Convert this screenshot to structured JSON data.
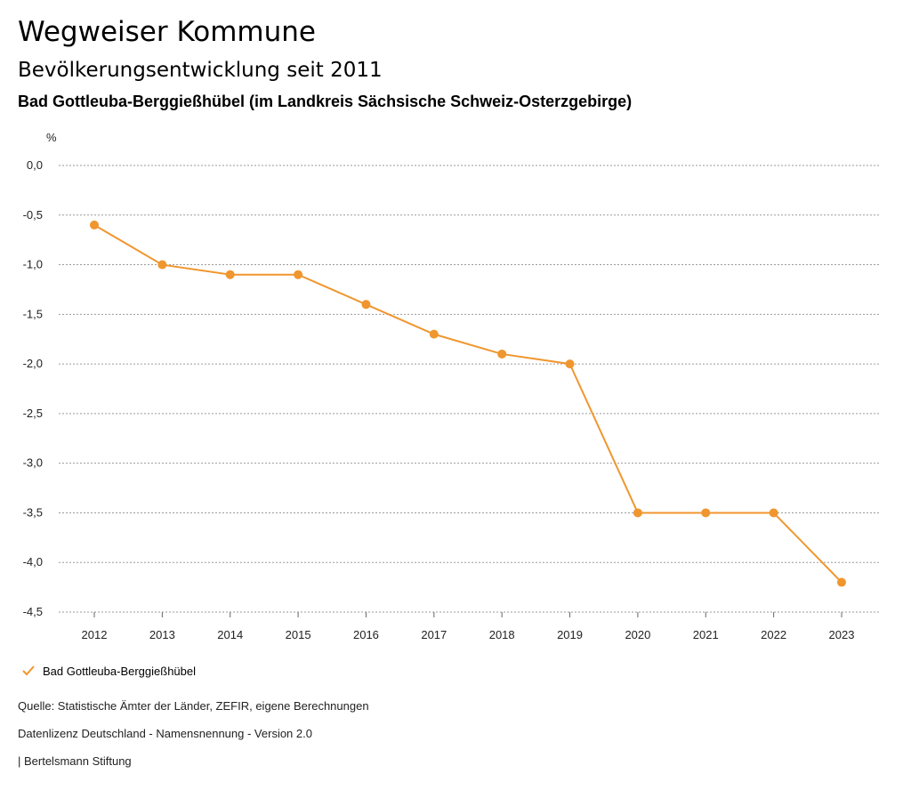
{
  "header": {
    "title": "Wegweiser Kommune",
    "subtitle": "Bevölkerungsentwicklung seit 2011",
    "region": "Bad Gottleuba-Berggießhübel (im Landkreis Sächsische Schweiz-Osterzgebirge)"
  },
  "chart_data": {
    "type": "line",
    "ylabel": "%",
    "categories": [
      "2012",
      "2013",
      "2014",
      "2015",
      "2016",
      "2017",
      "2018",
      "2019",
      "2020",
      "2021",
      "2022",
      "2023"
    ],
    "series": [
      {
        "name": "Bad Gottleuba-Berggießhübel",
        "values": [
          -0.6,
          -1.0,
          -1.1,
          -1.1,
          -1.4,
          -1.7,
          -1.9,
          -2.0,
          -3.5,
          -3.5,
          -3.5,
          -4.2
        ]
      }
    ],
    "ylim": [
      -4.5,
      0.0
    ],
    "yticks": [
      "0,0",
      "-0,5",
      "-1,0",
      "-1,5",
      "-2,0",
      "-2,5",
      "-3,0",
      "-3,5",
      "-4,0",
      "-4,5"
    ],
    "ytick_values": [
      0.0,
      -0.5,
      -1.0,
      -1.5,
      -2.0,
      -2.5,
      -3.0,
      -3.5,
      -4.0,
      -4.5
    ],
    "grid": true,
    "color": "#f0962e"
  },
  "legend": {
    "label": "Bad Gottleuba-Berggießhübel"
  },
  "footer": {
    "source": "Quelle: Statistische Ämter der Länder, ZEFIR, eigene Berechnungen",
    "license": "Datenlizenz Deutschland - Namensnennung - Version 2.0",
    "publisher": "| Bertelsmann Stiftung"
  }
}
